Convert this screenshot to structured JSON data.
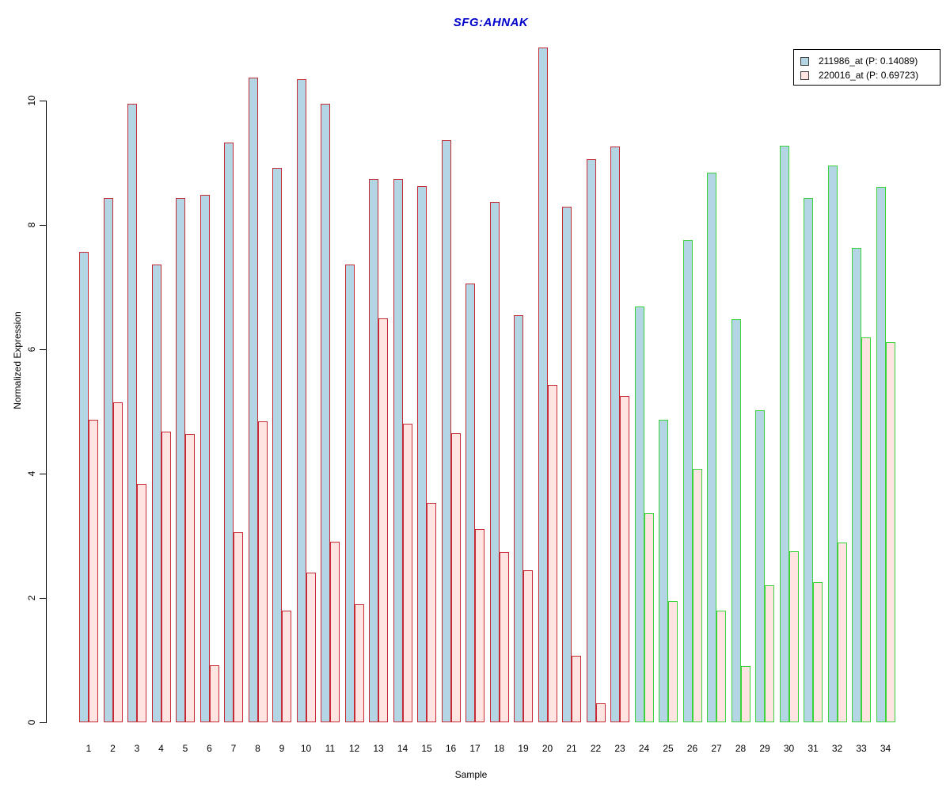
{
  "title": "SFG:AHNAK",
  "title_color": "#0000CC",
  "legend": {
    "position": "top-right",
    "swatch_border": "#3a3a3a",
    "items": [
      {
        "label": "211986_at (P: 0.14089)",
        "fill": "#B4D6E4"
      },
      {
        "label": "220016_at (P: 0.69723)",
        "fill": "#FFE4E1"
      }
    ]
  },
  "chart_data": {
    "type": "bar",
    "title": "SFG:AHNAK",
    "xlabel": "Sample",
    "ylabel": "Normalized Expression",
    "ylim": [
      0,
      11
    ],
    "yticks": [
      0,
      2,
      4,
      6,
      8,
      10
    ],
    "grid": false,
    "legend_position": "top-right",
    "background": "#FFFFFF",
    "categories": [
      1,
      2,
      3,
      4,
      5,
      6,
      7,
      8,
      9,
      10,
      11,
      12,
      13,
      14,
      15,
      16,
      17,
      18,
      19,
      20,
      21,
      22,
      23,
      24,
      25,
      26,
      27,
      28,
      29,
      30,
      31,
      32,
      33,
      34
    ],
    "series": [
      {
        "name": "211986_at (P: 0.14089)",
        "fill": "#B4D6E4",
        "values": [
          7.57,
          8.43,
          9.95,
          7.36,
          8.43,
          8.48,
          9.33,
          10.37,
          8.92,
          10.34,
          9.95,
          7.36,
          8.74,
          8.74,
          8.62,
          9.36,
          7.06,
          8.37,
          6.55,
          10.85,
          8.29,
          9.06,
          9.26,
          6.69,
          4.87,
          7.76,
          8.84,
          6.48,
          5.02,
          9.28,
          8.43,
          8.96,
          7.63,
          8.61
        ]
      },
      {
        "name": "220016_at (P: 0.69723)",
        "fill": "#FFE4E1",
        "values": [
          4.87,
          5.15,
          3.83,
          4.68,
          4.64,
          0.92,
          3.06,
          4.84,
          1.8,
          2.41,
          2.9,
          1.9,
          6.5,
          4.8,
          3.53,
          4.65,
          3.11,
          2.74,
          2.45,
          5.43,
          1.07,
          0.3,
          5.25,
          3.36,
          1.95,
          4.08,
          1.8,
          0.9,
          2.2,
          2.75,
          2.25,
          2.89,
          6.19,
          6.12
        ]
      }
    ],
    "border_groups": [
      {
        "start": 1,
        "end": 23,
        "color": "#C42B35"
      },
      {
        "start": 24,
        "end": 34,
        "color": "#3CD23C"
      }
    ]
  }
}
